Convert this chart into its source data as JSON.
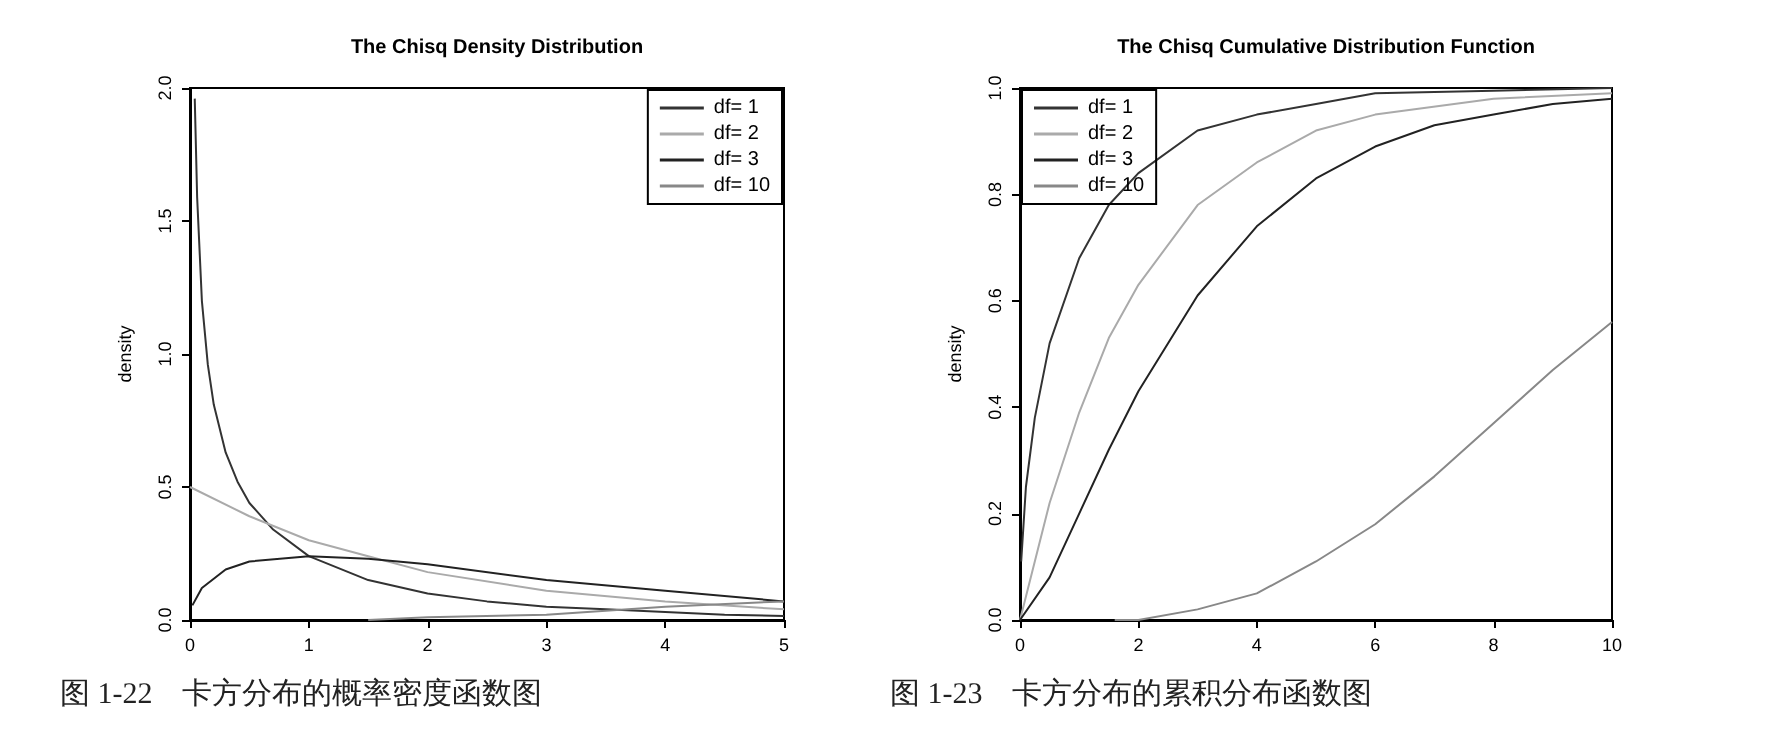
{
  "chart_data": [
    {
      "type": "line",
      "title": "The Chisq Density Distribution",
      "ylabel": "density",
      "xlim": [
        0,
        5
      ],
      "xticks": [
        0,
        1,
        2,
        3,
        4,
        5
      ],
      "ylim": [
        0,
        2
      ],
      "yticks": [
        {
          "value": 0,
          "label": "0.0"
        },
        {
          "value": 0.5,
          "label": "0.5"
        },
        {
          "value": 1,
          "label": "1.0"
        },
        {
          "value": 1.5,
          "label": "1.5"
        },
        {
          "value": 2,
          "label": "2.0"
        }
      ],
      "grid": false,
      "legend": "top right",
      "marker": "none",
      "line_style": "solid",
      "annotations": [
        "图 1-22    卡方分布的概率密度函数图"
      ],
      "series": [
        {
          "name": "df= 1",
          "color": "#333333",
          "x": [
            0.04,
            0.06,
            0.1,
            0.15,
            0.2,
            0.3,
            0.4,
            0.5,
            0.7,
            1,
            1.5,
            2,
            2.5,
            3,
            3.5,
            4,
            4.5,
            5
          ],
          "values": [
            1.96,
            1.59,
            1.2,
            0.96,
            0.81,
            0.63,
            0.52,
            0.44,
            0.34,
            0.24,
            0.15,
            0.1,
            0.07,
            0.05,
            0.04,
            0.03,
            0.02,
            0.015
          ]
        },
        {
          "name": "df= 2",
          "color": "#aaaaaa",
          "x": [
            0,
            0.5,
            1,
            1.5,
            2,
            3,
            4,
            5
          ],
          "values": [
            0.5,
            0.39,
            0.3,
            0.24,
            0.18,
            0.11,
            0.07,
            0.04
          ]
        },
        {
          "name": "df= 3",
          "color": "#222222",
          "x": [
            0.02,
            0.1,
            0.3,
            0.5,
            1,
            1.5,
            2,
            3,
            4,
            5
          ],
          "values": [
            0.055,
            0.12,
            0.19,
            0.22,
            0.24,
            0.23,
            0.21,
            0.15,
            0.11,
            0.07
          ]
        },
        {
          "name": "df= 10",
          "color": "#888888",
          "x": [
            1.5,
            2,
            3,
            4,
            5
          ],
          "values": [
            0.0,
            0.01,
            0.02,
            0.05,
            0.07
          ]
        }
      ]
    },
    {
      "type": "line",
      "title": "The Chisq Cumulative Distribution Function",
      "ylabel": "density",
      "xlim": [
        0,
        10
      ],
      "xticks": [
        0,
        2,
        4,
        6,
        8,
        10
      ],
      "ylim": [
        0,
        1
      ],
      "yticks": [
        {
          "value": 0,
          "label": "0.0"
        },
        {
          "value": 0.2,
          "label": "0.2"
        },
        {
          "value": 0.4,
          "label": "0.4"
        },
        {
          "value": 0.6,
          "label": "0.6"
        },
        {
          "value": 0.8,
          "label": "0.8"
        },
        {
          "value": 1,
          "label": "1.0"
        }
      ],
      "grid": false,
      "legend": "top left",
      "marker": "none",
      "line_style": "solid",
      "annotations": [
        "图 1-23    卡方分布的累积分布函数图"
      ],
      "series": [
        {
          "name": "df= 1",
          "color": "#333333",
          "x": [
            0.02,
            0.1,
            0.25,
            0.5,
            1,
            1.5,
            2,
            3,
            4,
            5,
            6,
            8,
            10
          ],
          "values": [
            0.11,
            0.25,
            0.38,
            0.52,
            0.68,
            0.78,
            0.84,
            0.92,
            0.95,
            0.97,
            0.99,
            0.995,
            1.0
          ]
        },
        {
          "name": "df= 2",
          "color": "#aaaaaa",
          "x": [
            0,
            0.5,
            1,
            1.5,
            2,
            3,
            4,
            5,
            6,
            8,
            10
          ],
          "values": [
            0,
            0.22,
            0.39,
            0.53,
            0.63,
            0.78,
            0.86,
            0.92,
            0.95,
            0.98,
            0.99
          ]
        },
        {
          "name": "df= 3",
          "color": "#222222",
          "x": [
            0,
            0.5,
            1,
            1.5,
            2,
            3,
            4,
            5,
            6,
            7,
            8,
            9,
            10
          ],
          "values": [
            0,
            0.08,
            0.2,
            0.32,
            0.43,
            0.61,
            0.74,
            0.83,
            0.89,
            0.93,
            0.95,
            0.97,
            0.98
          ]
        },
        {
          "name": "df= 10",
          "color": "#888888",
          "x": [
            1.6,
            2,
            3,
            4,
            5,
            6,
            7,
            8,
            9,
            10
          ],
          "values": [
            0.0,
            0.0,
            0.02,
            0.05,
            0.11,
            0.18,
            0.27,
            0.37,
            0.47,
            0.56
          ]
        }
      ]
    }
  ]
}
